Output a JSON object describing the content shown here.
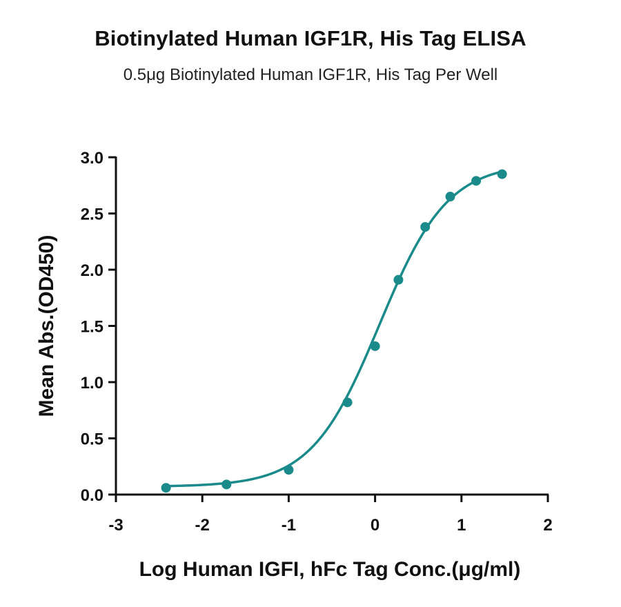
{
  "chart_data": {
    "type": "scatter",
    "title": "Biotinylated Human IGF1R, His Tag ELISA",
    "subtitle": "0.5μg Biotinylated Human IGF1R, His Tag Per Well",
    "xlabel": "Log Human IGFI, hFc Tag Conc.(μg/ml)",
    "ylabel": "Mean Abs.(OD450)",
    "xlim": [
      -3,
      2
    ],
    "ylim": [
      0,
      3
    ],
    "xticks": [
      "-3",
      "-2",
      "-1",
      "0",
      "1",
      "2"
    ],
    "yticks": [
      "0.0",
      "0.5",
      "1.0",
      "1.5",
      "2.0",
      "2.5",
      "3.0"
    ],
    "grid": false,
    "color": "#1a8a8a",
    "series": [
      {
        "x": [
          -2.42,
          -1.72,
          -1.0,
          -0.32,
          0.0,
          0.27,
          0.58,
          0.87,
          1.17,
          1.47
        ],
        "y": [
          0.06,
          0.09,
          0.22,
          0.82,
          1.32,
          1.91,
          2.38,
          2.65,
          2.79,
          2.85
        ]
      }
    ],
    "fit": {
      "type": "4PL",
      "bottom": 0.07,
      "top": 2.95,
      "logEC50": 0.05,
      "hill": 1.1
    }
  }
}
